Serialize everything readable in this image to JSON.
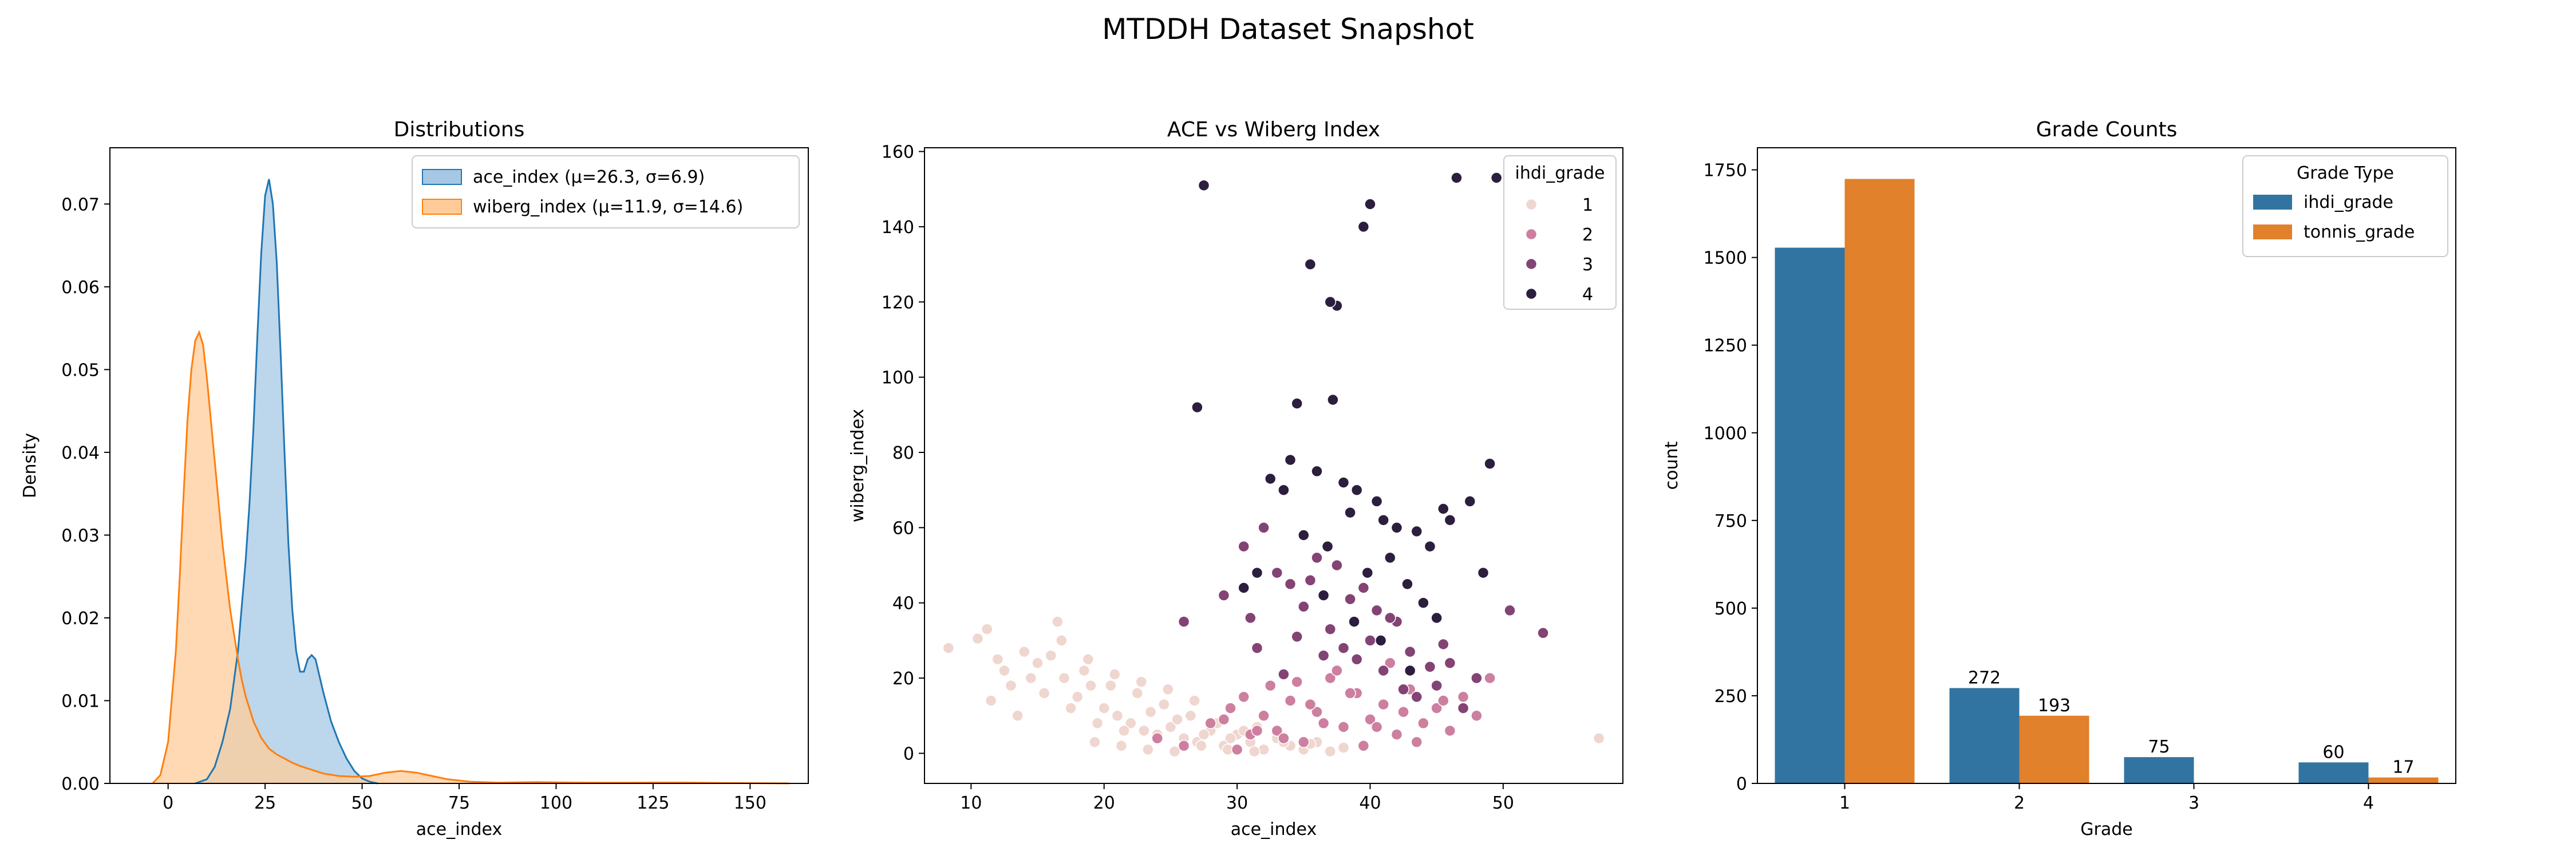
{
  "suptitle": "MTDDH Dataset Snapshot",
  "colors": {
    "ace": "#1f77b4",
    "ace_fill": "#a6c8e4",
    "wiberg": "#ff7f0e",
    "wiberg_fill": "#ffcc99",
    "bar_ihdi": "#3274a1",
    "bar_tonnis": "#e1812c",
    "hue_grade_1": "#efd6cf",
    "hue_grade_2": "#cd7fa0",
    "hue_grade_3": "#834374",
    "hue_grade_4": "#2c1e3e"
  },
  "chart_data": [
    {
      "type": "area",
      "title": "Distributions",
      "xlabel": "ace_index",
      "ylabel": "Density",
      "xlim": [
        -15,
        165
      ],
      "ylim": [
        0,
        0.0768
      ],
      "xticks": [
        0,
        25,
        50,
        75,
        100,
        125,
        150
      ],
      "xtick_labels": [
        "0",
        "25",
        "50",
        "75",
        "100",
        "125",
        "150"
      ],
      "yticks": [
        0.0,
        0.01,
        0.02,
        0.03,
        0.04,
        0.05,
        0.06,
        0.07
      ],
      "ytick_labels": [
        "0.00",
        "0.01",
        "0.02",
        "0.03",
        "0.04",
        "0.05",
        "0.06",
        "0.07"
      ],
      "legend_position": "top-right",
      "series": [
        {
          "name": "ace_index (μ=26.3, σ=6.9)",
          "x": [
            7,
            10,
            12,
            14,
            16,
            18,
            20,
            21,
            22,
            23,
            24,
            25,
            26,
            27,
            28,
            29,
            30,
            31,
            32,
            33,
            34,
            35,
            36,
            37,
            38,
            40,
            42,
            44,
            46,
            48,
            50,
            52,
            54
          ],
          "y": [
            0.0,
            0.0005,
            0.002,
            0.005,
            0.009,
            0.016,
            0.027,
            0.034,
            0.043,
            0.054,
            0.064,
            0.071,
            0.073,
            0.07,
            0.063,
            0.052,
            0.04,
            0.029,
            0.021,
            0.016,
            0.0135,
            0.0135,
            0.015,
            0.0155,
            0.015,
            0.011,
            0.0075,
            0.005,
            0.003,
            0.0015,
            0.0006,
            0.0002,
            0.0
          ]
        },
        {
          "name": "wiberg_index (μ=11.9, σ=14.6)",
          "x": [
            -4,
            -2,
            0,
            2,
            3,
            4,
            5,
            6,
            7,
            8,
            9,
            10,
            11,
            12,
            13,
            14,
            15,
            16,
            17,
            18,
            19,
            20,
            22,
            24,
            26,
            28,
            30,
            32,
            34,
            36,
            38,
            40,
            44,
            48,
            52,
            56,
            60,
            64,
            68,
            72,
            78,
            85,
            95,
            105,
            115,
            125,
            135,
            145,
            155,
            160
          ],
          "y": [
            0.0,
            0.001,
            0.005,
            0.016,
            0.025,
            0.035,
            0.044,
            0.05,
            0.0535,
            0.0545,
            0.053,
            0.049,
            0.044,
            0.039,
            0.034,
            0.029,
            0.025,
            0.021,
            0.018,
            0.015,
            0.0125,
            0.0105,
            0.0075,
            0.0055,
            0.0042,
            0.0035,
            0.003,
            0.0025,
            0.0021,
            0.0018,
            0.0015,
            0.0012,
            0.0009,
            0.0008,
            0.0009,
            0.0013,
            0.0015,
            0.0013,
            0.0009,
            0.0005,
            0.0002,
            0.0001,
            0.00015,
            0.0001,
            8e-05,
            0.0001,
            0.0001,
            5e-05,
            2e-05,
            0.0
          ]
        }
      ]
    },
    {
      "type": "scatter",
      "title": "ACE vs Wiberg Index",
      "xlabel": "ace_index",
      "ylabel": "wiberg_index",
      "xlim": [
        6.5,
        59
      ],
      "ylim": [
        -8,
        161
      ],
      "xticks": [
        10,
        20,
        30,
        40,
        50
      ],
      "xtick_labels": [
        "10",
        "20",
        "30",
        "40",
        "50"
      ],
      "yticks": [
        0,
        20,
        40,
        60,
        80,
        100,
        120,
        140,
        160
      ],
      "ytick_labels": [
        "0",
        "20",
        "40",
        "60",
        "80",
        "100",
        "120",
        "140",
        "160"
      ],
      "legend_title": "ihdi_grade",
      "legend_position": "top-right",
      "hue_labels": [
        "1",
        "2",
        "3",
        "4"
      ],
      "series": [
        {
          "name": "1",
          "x": [
            8.3,
            10.5,
            11.2,
            12.0,
            12.5,
            13.0,
            14.0,
            15.0,
            16.5,
            17.0,
            18.0,
            19.0,
            20.0,
            21.0,
            22.0,
            23.0,
            24.0,
            25.0,
            26.0,
            27.0,
            28.0,
            29.0,
            30.0,
            31.0,
            32.0,
            33.0,
            34.0,
            35.0,
            36.0,
            37.0,
            38.0,
            11.5,
            13.5,
            15.5,
            17.5,
            19.5,
            21.5,
            23.5,
            25.5,
            27.5,
            29.5,
            31.5,
            33.5,
            14.5,
            16.0,
            18.5,
            20.5,
            22.5,
            24.5,
            26.5,
            28.5,
            30.5,
            16.8,
            18.8,
            20.8,
            22.8,
            24.8,
            26.8,
            19.3,
            21.3,
            23.3,
            25.3,
            27.3,
            29.3,
            31.3,
            35.5,
            57.2
          ],
          "y": [
            28.0,
            30.5,
            33.0,
            25.0,
            22.0,
            18.0,
            27.0,
            24.0,
            35.0,
            20.0,
            15.0,
            18.0,
            12.0,
            10.0,
            8.0,
            6.0,
            5.0,
            7.0,
            4.0,
            3.0,
            6.0,
            2.0,
            5.0,
            3.0,
            1.0,
            4.0,
            2.0,
            1.0,
            3.0,
            0.5,
            1.5,
            14.0,
            10.0,
            16.0,
            12.0,
            8.0,
            6.0,
            11.0,
            9.0,
            5.0,
            4.0,
            7.0,
            3.0,
            20.0,
            26.0,
            22.0,
            18.0,
            16.0,
            13.0,
            10.0,
            8.0,
            6.0,
            30.0,
            25.0,
            21.0,
            19.0,
            17.0,
            14.0,
            3.0,
            2.0,
            1.0,
            0.5,
            2.0,
            1.0,
            0.5,
            2.5,
            4.0
          ]
        },
        {
          "name": "2",
          "x": [
            24.0,
            26.0,
            28.0,
            29.5,
            30.5,
            31.0,
            32.0,
            32.5,
            33.0,
            34.0,
            35.0,
            36.0,
            37.0,
            38.0,
            39.0,
            40.0,
            41.0,
            42.0,
            43.0,
            44.0,
            45.0,
            46.0,
            47.0,
            48.0,
            49.0,
            30.0,
            33.5,
            36.5,
            39.5,
            42.5,
            45.5,
            34.5,
            37.5,
            40.5,
            43.5,
            29.0,
            31.5,
            35.5,
            38.5,
            41.5
          ],
          "y": [
            4.0,
            2.0,
            8.0,
            12.0,
            15.0,
            5.0,
            10.0,
            18.0,
            6.0,
            14.0,
            3.0,
            11.0,
            20.0,
            7.0,
            16.0,
            9.0,
            13.0,
            5.0,
            17.0,
            8.0,
            12.0,
            6.0,
            15.0,
            10.0,
            20.0,
            1.0,
            4.0,
            8.0,
            2.0,
            11.0,
            14.0,
            19.0,
            22.0,
            7.0,
            3.0,
            9.0,
            6.0,
            13.0,
            16.0,
            24.0
          ]
        },
        {
          "name": "3",
          "x": [
            26.0,
            29.0,
            30.5,
            31.0,
            32.0,
            33.0,
            34.0,
            35.0,
            36.0,
            37.0,
            38.0,
            38.5,
            39.0,
            40.0,
            40.5,
            41.0,
            42.0,
            43.0,
            44.0,
            45.0,
            46.0,
            47.0,
            48.0,
            50.5,
            53.0,
            31.5,
            34.5,
            36.5,
            39.5,
            42.5,
            45.5,
            41.5,
            44.5,
            37.5,
            35.5,
            33.5,
            43.5
          ],
          "y": [
            35.0,
            42.0,
            55.0,
            36.0,
            60.0,
            48.0,
            45.0,
            39.0,
            52.0,
            33.0,
            28.0,
            41.0,
            25.0,
            30.0,
            38.0,
            22.0,
            35.0,
            27.0,
            40.0,
            18.0,
            24.0,
            12.0,
            20.0,
            38.0,
            32.0,
            28.0,
            31.0,
            26.0,
            44.0,
            17.0,
            29.0,
            36.0,
            23.0,
            50.0,
            46.0,
            21.0,
            15.0
          ]
        },
        {
          "name": "4",
          "x": [
            27.5,
            27.0,
            34.5,
            35.5,
            37.5,
            37.0,
            39.5,
            40.0,
            46.5,
            49.5,
            32.5,
            34.0,
            36.0,
            37.2,
            38.0,
            39.0,
            40.5,
            41.0,
            42.0,
            43.5,
            44.5,
            45.5,
            46.0,
            47.5,
            48.5,
            49.0,
            33.5,
            35.0,
            36.8,
            38.5,
            39.8,
            41.5,
            42.8,
            44.0,
            45.0,
            30.5,
            31.5,
            36.5,
            38.8,
            40.8,
            43.0
          ],
          "y": [
            151.0,
            92.0,
            93.0,
            130.0,
            119.0,
            120.0,
            140.0,
            146.0,
            153.0,
            153.0,
            73.0,
            78.0,
            75.0,
            94.0,
            72.0,
            70.0,
            67.0,
            62.0,
            60.0,
            59.0,
            55.0,
            65.0,
            62.0,
            67.0,
            48.0,
            77.0,
            70.0,
            58.0,
            55.0,
            64.0,
            48.0,
            52.0,
            45.0,
            40.0,
            36.0,
            44.0,
            48.0,
            42.0,
            35.0,
            30.0,
            22.0
          ]
        }
      ]
    },
    {
      "type": "bar",
      "title": "Grade Counts",
      "xlabel": "Grade",
      "ylabel": "count",
      "categories": [
        "1",
        "2",
        "3",
        "4"
      ],
      "ylim": [
        0,
        1813
      ],
      "yticks": [
        0,
        250,
        500,
        750,
        1000,
        1250,
        1500,
        1750
      ],
      "ytick_labels": [
        "0",
        "250",
        "500",
        "750",
        "1000",
        "1250",
        "1500",
        "1750"
      ],
      "legend_title": "Grade Type",
      "legend_position": "top-right",
      "series": [
        {
          "name": "ihdi_grade",
          "values": [
            1528,
            272,
            75,
            60
          ],
          "labels": [
            "",
            "272",
            "75",
            "60"
          ]
        },
        {
          "name": "tonnis_grade",
          "values": [
            1724,
            193,
            0,
            17
          ],
          "labels": [
            "",
            "193",
            "",
            "17"
          ]
        }
      ]
    }
  ]
}
